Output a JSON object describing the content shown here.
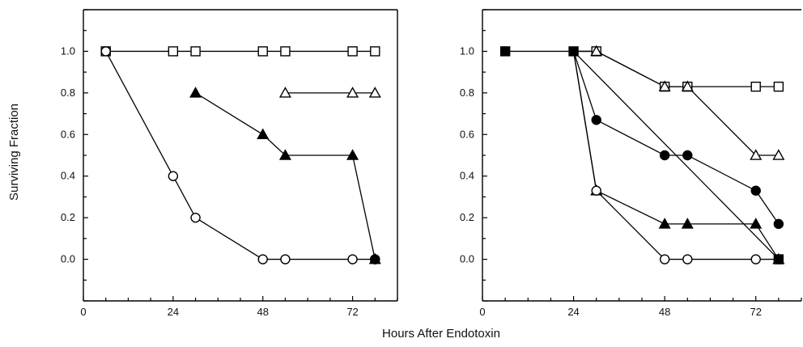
{
  "shared": {
    "xlabel": "Hours After Endotoxin",
    "ylabel": "Surviving Fraction"
  },
  "chart_data": [
    {
      "type": "line",
      "xlim": [
        0,
        84
      ],
      "ylim": [
        -0.2,
        1.2
      ],
      "xticks": [
        "0",
        "24",
        "48",
        "72"
      ],
      "yticks": [
        "0.0",
        "0.2",
        "0.4",
        "0.6",
        "0.8",
        "1.0"
      ],
      "grid": false,
      "series": [
        {
          "marker": "open-square",
          "x": [
            6,
            24,
            30,
            48,
            54,
            72,
            78
          ],
          "y": [
            1.0,
            1.0,
            1.0,
            1.0,
            1.0,
            1.0,
            1.0
          ]
        },
        {
          "marker": "open-triangle",
          "x": [
            54,
            72,
            78
          ],
          "y": [
            0.8,
            0.8,
            0.8
          ]
        },
        {
          "marker": "filled-triangle",
          "x": [
            30,
            48,
            54,
            72,
            78
          ],
          "y": [
            0.8,
            0.6,
            0.5,
            0.5,
            0.0
          ]
        },
        {
          "marker": "open-circle",
          "x": [
            6,
            24,
            30,
            48,
            54,
            72,
            78
          ],
          "y": [
            1.0,
            0.4,
            0.2,
            0.0,
            0.0,
            0.0,
            0.0
          ]
        },
        {
          "marker": "filled-circle",
          "x": [
            78
          ],
          "y": [
            0.0
          ]
        }
      ]
    },
    {
      "type": "line",
      "xlim": [
        0,
        84
      ],
      "ylim": [
        -0.2,
        1.2
      ],
      "xticks": [
        "0",
        "24",
        "48",
        "72"
      ],
      "yticks": [
        "0.0",
        "0.2",
        "0.4",
        "0.6",
        "0.8",
        "1.0"
      ],
      "grid": false,
      "series": [
        {
          "marker": "filled-square",
          "x": [
            6,
            24
          ],
          "y": [
            1.0,
            1.0
          ]
        },
        {
          "marker": "open-square",
          "x": [
            30,
            48,
            54,
            72,
            78
          ],
          "y": [
            1.0,
            0.83,
            0.83,
            0.83,
            0.83
          ]
        },
        {
          "marker": "open-triangle",
          "x": [
            30,
            48,
            54,
            72,
            78
          ],
          "y": [
            1.0,
            0.83,
            0.83,
            0.5,
            0.5
          ]
        },
        {
          "marker": "filled-circle",
          "x": [
            30,
            48,
            54,
            72,
            78
          ],
          "y": [
            0.67,
            0.5,
            0.5,
            0.33,
            0.17
          ]
        },
        {
          "marker": "filled-triangle",
          "x": [
            30,
            48,
            54,
            72,
            78
          ],
          "y": [
            0.33,
            0.17,
            0.17,
            0.17,
            0.0
          ]
        },
        {
          "marker": "open-circle",
          "x": [
            30,
            48,
            54,
            72,
            78
          ],
          "y": [
            0.33,
            0.0,
            0.0,
            0.0,
            0.0
          ]
        },
        {
          "marker": "filled-square",
          "x": [
            78
          ],
          "y": [
            0.0
          ]
        }
      ],
      "branch_from": {
        "x": 24,
        "y": 1.0
      }
    }
  ]
}
